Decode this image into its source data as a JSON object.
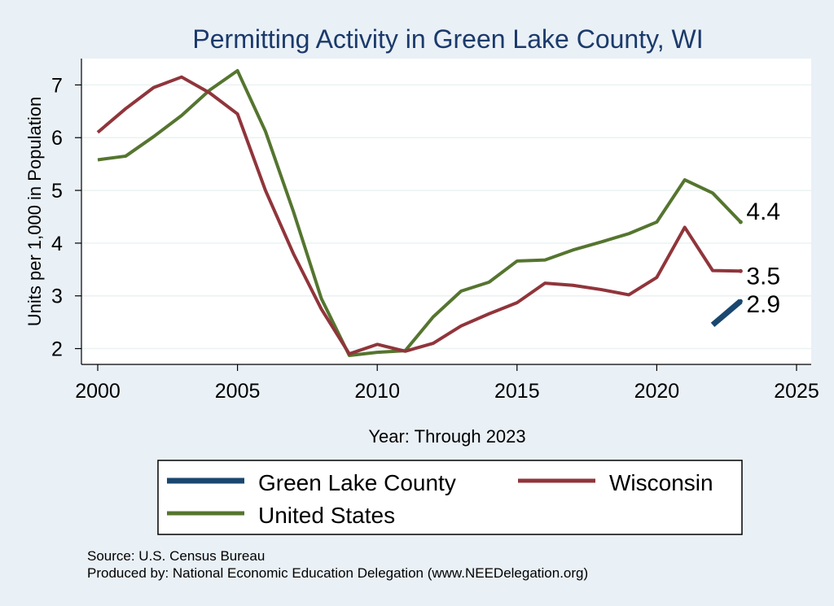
{
  "chart_data": {
    "type": "line",
    "title": "Permitting Activity in Green Lake County, WI",
    "xlabel": "Year: Through 2023",
    "ylabel": "Units per 1,000 in Population",
    "xlim": [
      2000,
      2025
    ],
    "ylim": [
      1.7,
      7.5
    ],
    "xticks": [
      2000,
      2005,
      2010,
      2015,
      2020,
      2025
    ],
    "yticks": [
      2,
      3,
      4,
      5,
      6,
      7
    ],
    "grid": "horizontal",
    "legend_position": "bottom",
    "series": [
      {
        "name": "Green Lake County",
        "color": "#1a476f",
        "x": [
          2022,
          2023
        ],
        "values": [
          2.45,
          2.9
        ],
        "end_label": "2.9"
      },
      {
        "name": "Wisconsin",
        "color": "#90353b",
        "x": [
          2000,
          2001,
          2002,
          2003,
          2004,
          2005,
          2006,
          2007,
          2008,
          2009,
          2010,
          2011,
          2012,
          2013,
          2014,
          2015,
          2016,
          2017,
          2018,
          2019,
          2020,
          2021,
          2022,
          2023
        ],
        "values": [
          6.1,
          6.55,
          6.95,
          7.15,
          6.85,
          6.45,
          5.0,
          3.8,
          2.75,
          1.9,
          2.08,
          1.95,
          2.1,
          2.43,
          2.66,
          2.87,
          3.24,
          3.2,
          3.12,
          3.02,
          3.35,
          4.3,
          3.48,
          3.47
        ],
        "end_label": "3.5"
      },
      {
        "name": "United States",
        "color": "#55752f",
        "x": [
          2000,
          2001,
          2002,
          2003,
          2004,
          2005,
          2006,
          2007,
          2008,
          2009,
          2010,
          2011,
          2012,
          2013,
          2014,
          2015,
          2016,
          2017,
          2018,
          2019,
          2020,
          2021,
          2022,
          2023
        ],
        "values": [
          5.58,
          5.65,
          6.02,
          6.42,
          6.9,
          7.27,
          6.12,
          4.6,
          2.95,
          1.87,
          1.93,
          1.96,
          2.6,
          3.09,
          3.26,
          3.66,
          3.68,
          3.87,
          4.02,
          4.18,
          4.4,
          5.2,
          4.95,
          4.4
        ],
        "end_label": "4.4"
      }
    ],
    "legend": {
      "order": [
        "Green Lake County",
        "Wisconsin",
        "United States"
      ]
    },
    "notes": [
      "Source: U.S. Census Bureau",
      "Produced by: National Economic Education Delegation (www.NEEDelegation.org)"
    ]
  }
}
